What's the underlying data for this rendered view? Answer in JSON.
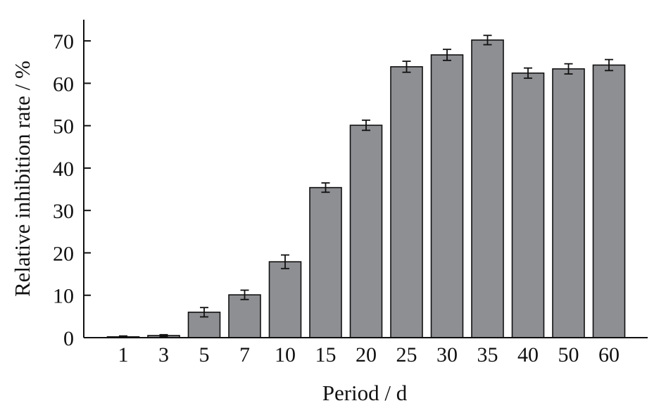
{
  "chart_data": {
    "type": "bar",
    "categories": [
      "1",
      "3",
      "5",
      "7",
      "10",
      "15",
      "20",
      "25",
      "30",
      "35",
      "40",
      "50",
      "60"
    ],
    "series": [
      {
        "values": [
          0.2,
          0.5,
          6.0,
          10.1,
          17.9,
          35.4,
          50.1,
          63.9,
          66.7,
          70.2,
          62.4,
          63.4,
          64.3
        ],
        "errors": [
          0.2,
          0.2,
          1.1,
          1.1,
          1.6,
          1.1,
          1.2,
          1.3,
          1.3,
          1.1,
          1.2,
          1.2,
          1.3
        ]
      }
    ],
    "xlabel": "Period / d",
    "ylabel": "Relative inhibition rate / %",
    "ylim": [
      0,
      75
    ],
    "yticks": [
      0,
      10,
      20,
      30,
      40,
      50,
      60,
      70
    ],
    "bar_color": "#8e8f93",
    "bar_edge_color": "#111111",
    "error_bars": true,
    "grid": false,
    "legend": "none"
  }
}
